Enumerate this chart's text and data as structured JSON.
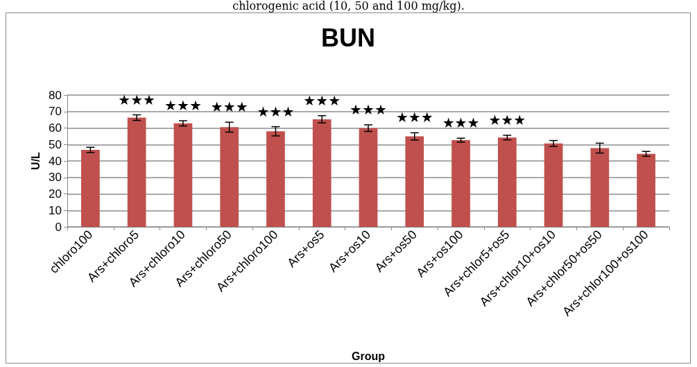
{
  "chart_data": {
    "type": "bar",
    "title": "BUN",
    "xlabel": "Group",
    "ylabel": "U/L",
    "categories": [
      "chloro100",
      "Ars+chloro5",
      "Ars+chloro10",
      "Ars+chloro50",
      "Ars+chloro100",
      "Ars+os5",
      "Ars+os10",
      "Ars+os50",
      "Ars+os100",
      "Ars+chlor5+os5",
      "Ars+chlor10+os10",
      "Ars+chlor50+os50",
      "Ars+chlor100+os100"
    ],
    "values": [
      46.7,
      66.3,
      62.8,
      60.5,
      58,
      65.3,
      59.9,
      54.9,
      52.6,
      54.2,
      50.6,
      47.8,
      44.3
    ],
    "errors": [
      1.6,
      1.7,
      1.6,
      3,
      2.8,
      2.2,
      2,
      2.2,
      1.2,
      1.4,
      1.8,
      3,
      1.5
    ],
    "color": "#c0504d",
    "ylim": [
      0,
      80
    ],
    "yticks": [
      0,
      10,
      20,
      30,
      40,
      50,
      60,
      70,
      80
    ],
    "grid": "y",
    "annotations": [
      "chlorogenic acid (10, 50 and 100 mg/kg).",
      "★★★",
      "★★★",
      "★★★",
      "★★★",
      "★★★",
      "★★★",
      "★★★",
      "★★★",
      "★★★"
    ]
  }
}
